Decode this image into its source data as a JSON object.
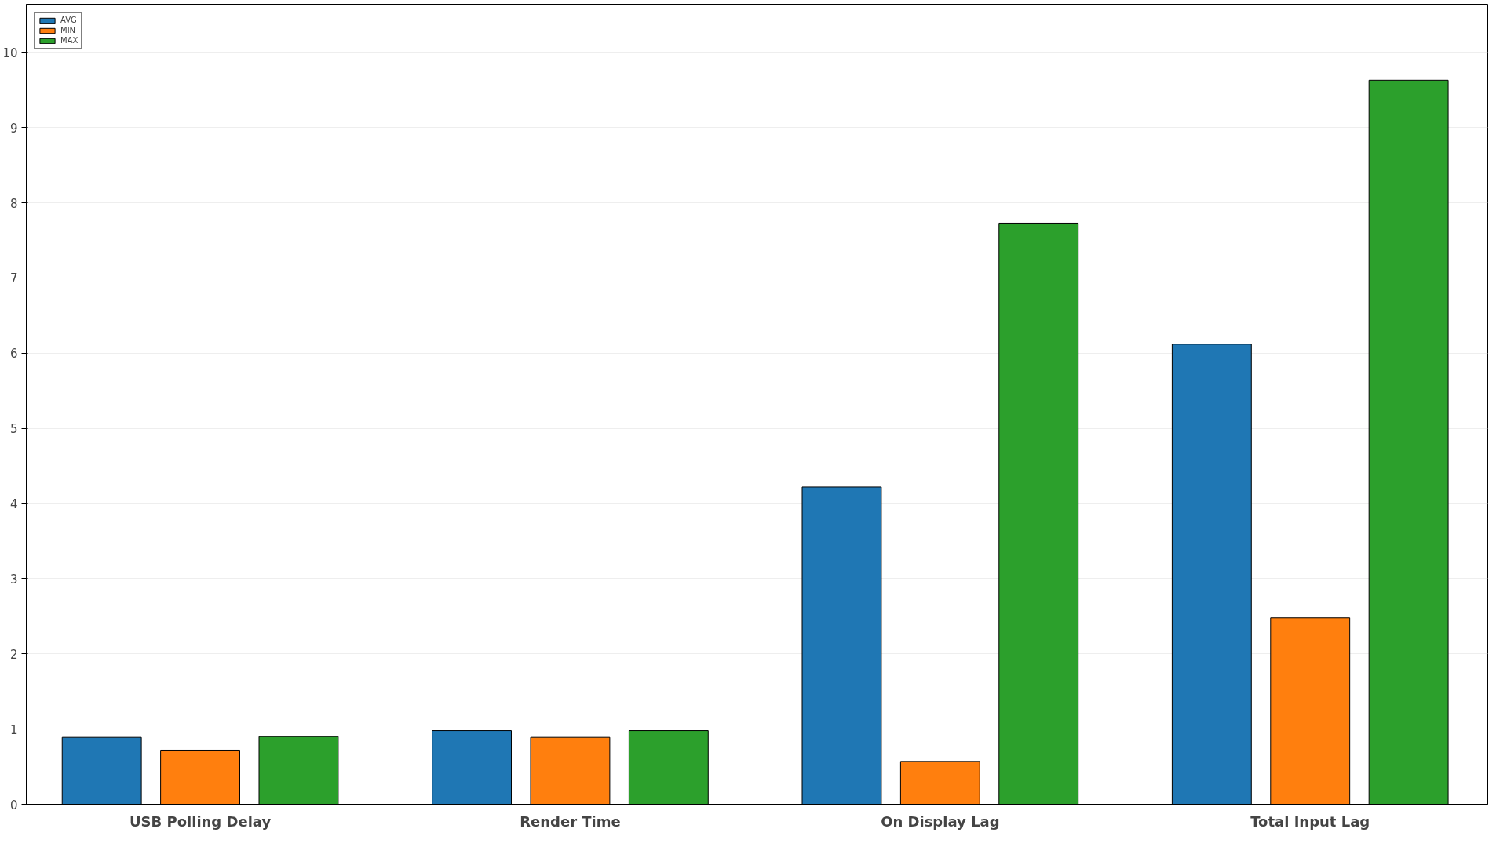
{
  "chart_data": {
    "type": "bar",
    "categories": [
      "USB Polling Delay",
      "Render Time",
      "On Display Lag",
      "Total Input Lag"
    ],
    "series": [
      {
        "name": "AVG",
        "color": "#1f77b4",
        "values": [
          0.89,
          0.98,
          4.22,
          6.12
        ]
      },
      {
        "name": "MIN",
        "color": "#ff7f0e",
        "values": [
          0.72,
          0.89,
          0.57,
          2.48
        ]
      },
      {
        "name": "MAX",
        "color": "#2ca02c",
        "values": [
          0.9,
          0.98,
          7.73,
          9.63
        ]
      }
    ],
    "ylim": [
      0,
      10.64
    ],
    "yticks": [
      0,
      1,
      2,
      3,
      4,
      5,
      6,
      7,
      8,
      9,
      10
    ],
    "grid": "y",
    "legend": "top left"
  }
}
